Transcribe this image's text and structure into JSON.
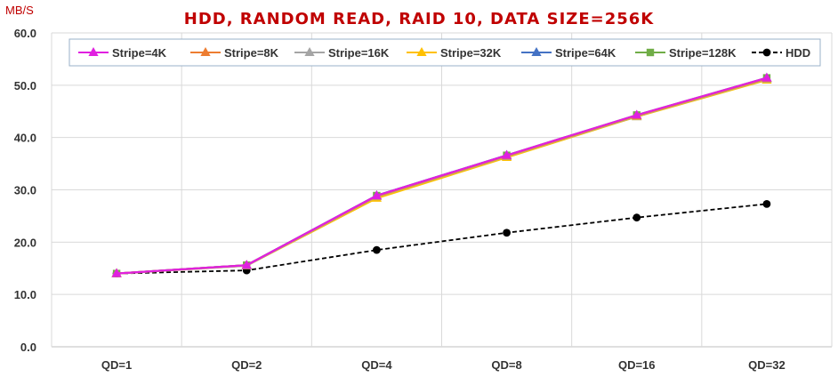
{
  "chart_data": {
    "type": "line",
    "title": "HDD, RANDOM READ, RAID 10, DATA SIZE=256K",
    "ylabel": "MB/S",
    "xlabel": "",
    "ylim": [
      0,
      60
    ],
    "yticks": [
      "0.0",
      "10.0",
      "20.0",
      "30.0",
      "40.0",
      "50.0",
      "60.0"
    ],
    "categories": [
      "QD=1",
      "QD=2",
      "QD=4",
      "QD=8",
      "QD=16",
      "QD=32"
    ],
    "grid": "on",
    "legend": "top",
    "series": [
      {
        "name": "Stripe=4K",
        "values": [
          14.0,
          15.6,
          28.9,
          36.6,
          44.3,
          51.4
        ],
        "color": "#e020e0",
        "marker": "triangle",
        "dash": "solid"
      },
      {
        "name": "Stripe=8K",
        "values": [
          14.0,
          15.6,
          28.8,
          36.5,
          44.2,
          51.3
        ],
        "color": "#ed7d31",
        "marker": "triangle",
        "dash": "solid"
      },
      {
        "name": "Stripe=16K",
        "values": [
          14.0,
          15.5,
          28.7,
          36.4,
          44.1,
          51.2
        ],
        "color": "#a5a5a5",
        "marker": "triangle",
        "dash": "solid"
      },
      {
        "name": "Stripe=32K",
        "values": [
          14.0,
          15.5,
          28.4,
          36.2,
          44.0,
          51.0
        ],
        "color": "#ffc000",
        "marker": "triangle",
        "dash": "solid"
      },
      {
        "name": "Stripe=64K",
        "values": [
          14.0,
          15.6,
          28.9,
          36.6,
          44.0,
          51.4
        ],
        "color": "#4472c4",
        "marker": "triangle",
        "dash": "solid"
      },
      {
        "name": "Stripe=128K",
        "values": [
          14.0,
          15.6,
          28.9,
          36.6,
          44.3,
          51.4
        ],
        "color": "#70ad47",
        "marker": "square",
        "dash": "solid"
      },
      {
        "name": "HDD",
        "values": [
          14.0,
          14.6,
          18.5,
          21.8,
          24.7,
          27.3
        ],
        "color": "#000000",
        "marker": "circle",
        "dash": "dashed"
      }
    ]
  }
}
